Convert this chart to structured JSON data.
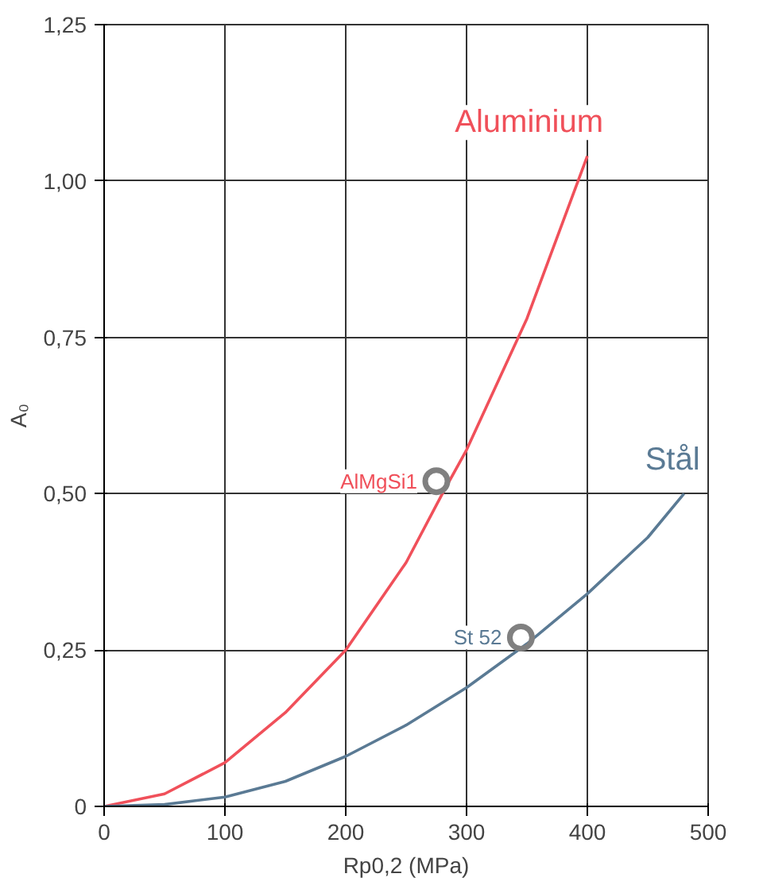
{
  "chart_data": {
    "type": "line",
    "xlabel": "Rp0,2 (MPa)",
    "ylabel": "A₀",
    "xlim": [
      0,
      500
    ],
    "ylim": [
      0,
      1.25
    ],
    "xticks": [
      0,
      100,
      200,
      300,
      400,
      500
    ],
    "yticks": [
      0,
      {
        "value": 0.25,
        "label": "0,25"
      },
      {
        "value": 0.5,
        "label": "0,50"
      },
      {
        "value": 0.75,
        "label": "0,75"
      },
      {
        "value": 1.0,
        "label": "1,00"
      },
      {
        "value": 1.25,
        "label": "1,25"
      }
    ],
    "grid": true,
    "line_style": "solid",
    "series": [
      {
        "name": "Aluminium",
        "color": "#f0505a",
        "x": [
          0,
          50,
          100,
          150,
          200,
          250,
          280,
          300,
          350,
          400
        ],
        "values": [
          0,
          0.02,
          0.07,
          0.15,
          0.25,
          0.39,
          0.5,
          0.57,
          0.78,
          1.04
        ]
      },
      {
        "name": "Stål",
        "color": "#5a7a94",
        "x": [
          0,
          50,
          100,
          150,
          200,
          250,
          300,
          350,
          400,
          450,
          480
        ],
        "values": [
          0,
          0.003,
          0.015,
          0.04,
          0.08,
          0.13,
          0.19,
          0.26,
          0.34,
          0.43,
          0.5
        ]
      },
      {
        "type": "scatter",
        "color": "#808080",
        "marker": "circle",
        "x": [
          275,
          345
        ],
        "values": [
          0.52,
          0.27
        ]
      }
    ],
    "annotations": [
      {
        "text": "AlMgSi1",
        "x": 275,
        "y": 0.52
      },
      {
        "text": "St 52",
        "x": 345,
        "y": 0.27
      }
    ]
  }
}
